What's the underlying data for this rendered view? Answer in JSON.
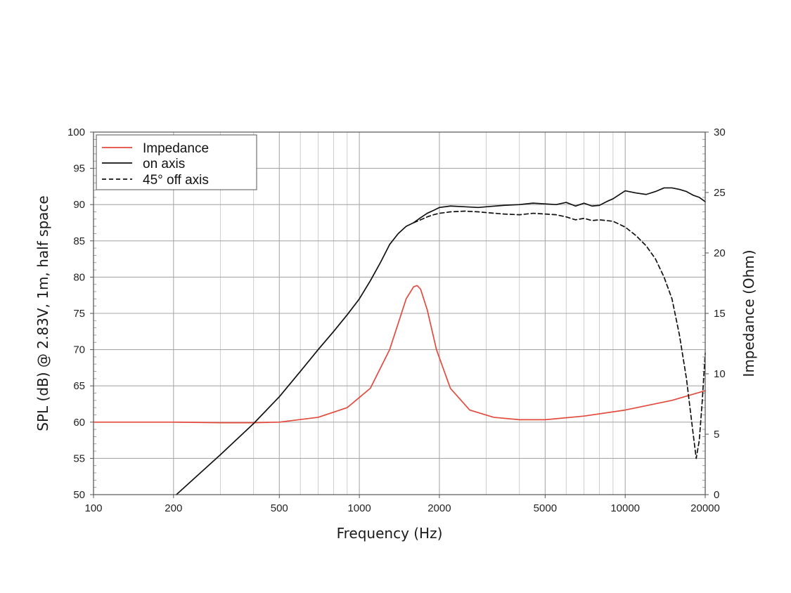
{
  "chart_data": {
    "type": "line",
    "xlabel": "Frequency (Hz)",
    "ylabel": "SPL (dB) @ 2.83V, 1m, half space",
    "y2label": "Impedance (Ohm)",
    "xscale": "log",
    "xlim": [
      100,
      20000
    ],
    "ylim": [
      50,
      100
    ],
    "y2lim": [
      0,
      30
    ],
    "grid": true,
    "legend_position": "top-left",
    "x_ticks": [
      "100",
      "200",
      "500",
      "1000",
      "2000",
      "5000",
      "10000",
      "20000"
    ],
    "y_ticks": [
      "50",
      "55",
      "60",
      "65",
      "70",
      "75",
      "80",
      "85",
      "90",
      "95",
      "100"
    ],
    "y2_ticks": [
      "0",
      "5",
      "10",
      "15",
      "20",
      "25",
      "30"
    ],
    "series": [
      {
        "name": "Impedance",
        "axis": "right",
        "color": "#e34a3c",
        "style": "solid",
        "x": [
          100,
          200,
          300,
          400,
          500,
          700,
          900,
          1100,
          1300,
          1500,
          1600,
          1650,
          1700,
          1800,
          1950,
          2200,
          2600,
          3200,
          4000,
          5000,
          7000,
          10000,
          15000,
          20000
        ],
        "y": [
          6.0,
          6.0,
          5.95,
          5.95,
          6.0,
          6.4,
          7.2,
          8.8,
          12.0,
          16.2,
          17.2,
          17.3,
          17.0,
          15.3,
          12.0,
          8.8,
          7.0,
          6.4,
          6.2,
          6.2,
          6.5,
          7.0,
          7.8,
          8.6
        ]
      },
      {
        "name": "on axis",
        "axis": "left",
        "color": "#111111",
        "style": "solid",
        "x": [
          205,
          300,
          400,
          500,
          600,
          700,
          800,
          900,
          1000,
          1100,
          1200,
          1300,
          1400,
          1500,
          1600,
          1700,
          1800,
          1900,
          2000,
          2200,
          2500,
          2800,
          3000,
          3500,
          4000,
          4500,
          5000,
          5500,
          6000,
          6500,
          7000,
          7500,
          8000,
          8500,
          9000,
          10000,
          11000,
          12000,
          13000,
          14000,
          15000,
          16000,
          17000,
          18000,
          19000,
          20000
        ],
        "y": [
          50.0,
          55.5,
          59.8,
          63.5,
          67.0,
          70.0,
          72.5,
          74.8,
          77.0,
          79.5,
          82.0,
          84.5,
          86.0,
          87.0,
          87.5,
          88.2,
          88.8,
          89.2,
          89.6,
          89.8,
          89.7,
          89.6,
          89.7,
          89.9,
          90.0,
          90.2,
          90.1,
          90.0,
          90.3,
          89.8,
          90.2,
          89.8,
          89.9,
          90.4,
          90.8,
          91.9,
          91.6,
          91.4,
          91.8,
          92.3,
          92.3,
          92.1,
          91.8,
          91.3,
          91.0,
          90.4
        ]
      },
      {
        "name": "45° off axis",
        "axis": "left",
        "color": "#111111",
        "style": "dashed",
        "x": [
          1600,
          1700,
          1800,
          1900,
          2000,
          2200,
          2500,
          2800,
          3000,
          3500,
          4000,
          4500,
          5000,
          5500,
          6000,
          6500,
          7000,
          7500,
          8000,
          9000,
          10000,
          11000,
          12000,
          13000,
          14000,
          15000,
          16000,
          17000,
          18000,
          18500,
          19000,
          19500,
          20000
        ],
        "y": [
          87.5,
          87.9,
          88.3,
          88.6,
          88.8,
          89.0,
          89.1,
          89.0,
          88.9,
          88.7,
          88.6,
          88.8,
          88.7,
          88.6,
          88.3,
          87.9,
          88.1,
          87.8,
          87.9,
          87.7,
          86.9,
          85.7,
          84.3,
          82.5,
          80.0,
          77.0,
          72.0,
          66.0,
          58.5,
          55.0,
          57.5,
          63.0,
          69.5
        ]
      }
    ]
  }
}
